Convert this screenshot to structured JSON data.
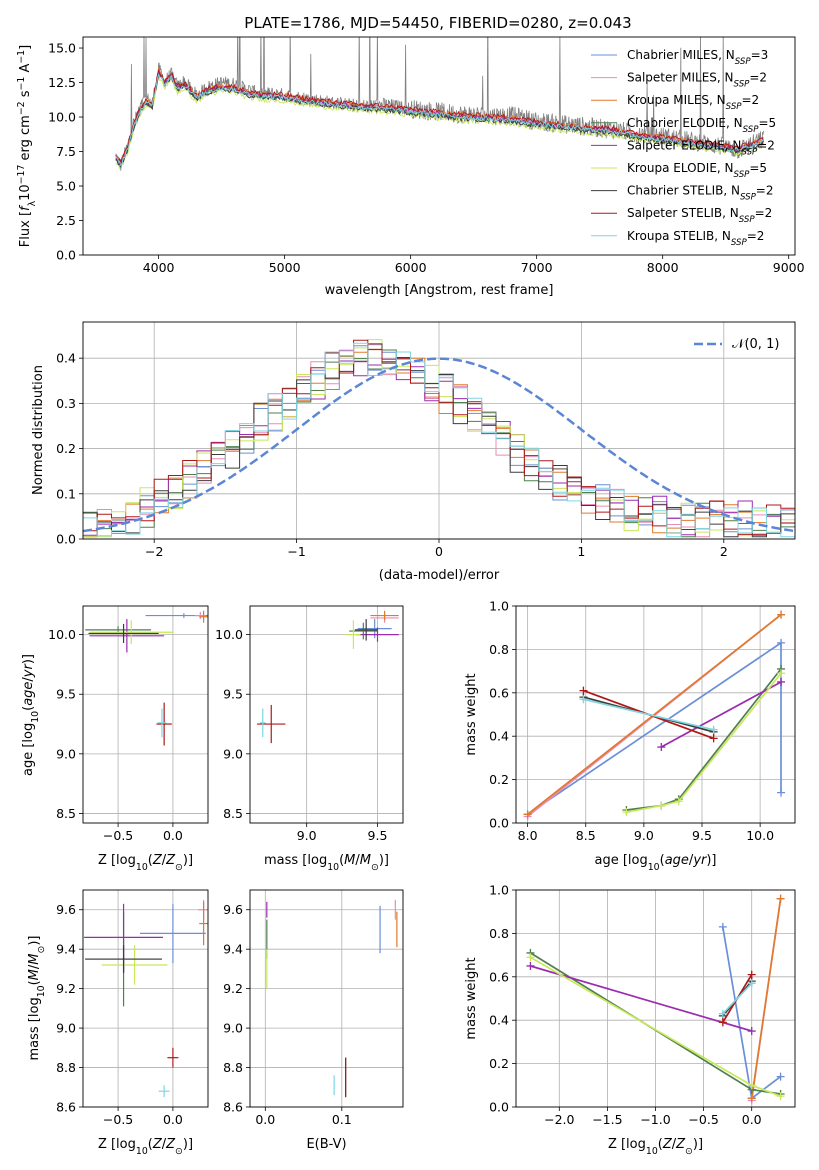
{
  "figure": {
    "title": "PLATE=1786, MJD=54450, FIBERID=0280, z=0.043"
  },
  "series": [
    {
      "name": "Chabrier MILES",
      "nssp": "3",
      "color": "#6a8fd8"
    },
    {
      "name": "Salpeter MILES",
      "nssp": "2",
      "color": "#e88bb8"
    },
    {
      "name": "Kroupa MILES",
      "nssp": "2",
      "color": "#e07a2c"
    },
    {
      "name": "Chabrier ELODIE",
      "nssp": "5",
      "color": "#4f7f4f"
    },
    {
      "name": "Salpeter ELODIE",
      "nssp": "2",
      "color": "#9b2bb0"
    },
    {
      "name": "Kroupa ELODIE",
      "nssp": "5",
      "color": "#c8e85a"
    },
    {
      "name": "Chabrier STELIB",
      "nssp": "2",
      "color": "#3c3c3c"
    },
    {
      "name": "Salpeter STELIB",
      "nssp": "2",
      "color": "#b01818"
    },
    {
      "name": "Kroupa STELIB",
      "nssp": "2",
      "color": "#7fd6e0"
    }
  ],
  "chart_data": [
    {
      "id": "spectrum",
      "type": "line",
      "title": "PLATE=1786, MJD=54450, FIBERID=0280, z=0.043",
      "xlabel": "wavelength [Angstrom, rest frame]",
      "ylabel": "Flux [f_λ 10^-17 erg cm^-2 s^-1 A^-1]",
      "xlim": [
        3400,
        9050
      ],
      "ylim": [
        0,
        15.8
      ],
      "xticks": [
        4000,
        5000,
        6000,
        7000,
        8000,
        9000
      ],
      "yticks": [
        0.0,
        2.5,
        5.0,
        7.5,
        10.0,
        12.5,
        15.0
      ],
      "data_color": "#808080",
      "data_points": [
        [
          3660,
          7.2
        ],
        [
          3700,
          6.5
        ],
        [
          3750,
          7.8
        ],
        [
          3800,
          9.5
        ],
        [
          3850,
          10.6
        ],
        [
          3900,
          11.4
        ],
        [
          3950,
          11.0
        ],
        [
          4000,
          13.5
        ],
        [
          4050,
          12.6
        ],
        [
          4100,
          13.1
        ],
        [
          4150,
          12.2
        ],
        [
          4200,
          12.6
        ],
        [
          4300,
          11.6
        ],
        [
          4400,
          12.2
        ],
        [
          4500,
          12.5
        ],
        [
          4600,
          12.4
        ],
        [
          4700,
          12.0
        ],
        [
          4800,
          11.7
        ],
        [
          4900,
          11.7
        ],
        [
          5000,
          11.6
        ],
        [
          5200,
          11.3
        ],
        [
          5400,
          11.0
        ],
        [
          5600,
          10.8
        ],
        [
          5800,
          10.9
        ],
        [
          6000,
          10.6
        ],
        [
          6200,
          10.4
        ],
        [
          6400,
          10.2
        ],
        [
          6600,
          10.1
        ],
        [
          6800,
          10.1
        ],
        [
          7000,
          9.7
        ],
        [
          7200,
          9.5
        ],
        [
          7400,
          9.3
        ],
        [
          7600,
          9.1
        ],
        [
          7800,
          8.8
        ],
        [
          8000,
          8.6
        ],
        [
          8200,
          8.3
        ],
        [
          8400,
          8.0
        ],
        [
          8600,
          7.6
        ],
        [
          8800,
          8.4
        ]
      ],
      "model_points": [
        [
          3660,
          7.0
        ],
        [
          3700,
          6.6
        ],
        [
          3750,
          7.6
        ],
        [
          3800,
          9.2
        ],
        [
          3850,
          10.4
        ],
        [
          3900,
          11.0
        ],
        [
          3950,
          10.8
        ],
        [
          4000,
          13.2
        ],
        [
          4050,
          12.4
        ],
        [
          4100,
          13.0
        ],
        [
          4150,
          12.0
        ],
        [
          4200,
          12.3
        ],
        [
          4300,
          11.4
        ],
        [
          4400,
          11.9
        ],
        [
          4500,
          12.1
        ],
        [
          4600,
          12.0
        ],
        [
          4700,
          11.7
        ],
        [
          4800,
          11.5
        ],
        [
          4900,
          11.5
        ],
        [
          5000,
          11.4
        ],
        [
          5200,
          11.1
        ],
        [
          5400,
          10.9
        ],
        [
          5600,
          10.7
        ],
        [
          5800,
          10.6
        ],
        [
          6000,
          10.4
        ],
        [
          6200,
          10.2
        ],
        [
          6400,
          10.0
        ],
        [
          6600,
          9.9
        ],
        [
          6800,
          9.8
        ],
        [
          7000,
          9.5
        ],
        [
          7200,
          9.3
        ],
        [
          7400,
          9.1
        ],
        [
          7600,
          9.0
        ],
        [
          7800,
          8.6
        ],
        [
          8000,
          8.4
        ],
        [
          8200,
          8.1
        ],
        [
          8400,
          7.9
        ],
        [
          8600,
          7.6
        ],
        [
          8800,
          8.2
        ]
      ],
      "series_model_offsets": [
        0.0,
        0.1,
        0.15,
        -0.05,
        0.05,
        -0.25,
        -0.1,
        0.2,
        0.0
      ]
    },
    {
      "id": "residuals",
      "type": "histogram",
      "xlabel": "(data-model)/error",
      "ylabel": "Normed distribution",
      "xlim": [
        -2.5,
        2.5
      ],
      "ylim": [
        0,
        0.48
      ],
      "xticks": [
        -2,
        -1,
        0,
        1,
        2
      ],
      "yticks": [
        0.0,
        0.1,
        0.2,
        0.3,
        0.4
      ],
      "reference": {
        "name": "N(0,1)",
        "mu": 0,
        "sigma": 1,
        "color": "#5b86d6"
      },
      "bin_width": 0.1,
      "envelope": [
        0.02,
        0.02,
        0.03,
        0.03,
        0.04,
        0.05,
        0.05,
        0.06,
        0.07,
        0.08,
        0.09,
        0.1,
        0.11,
        0.12,
        0.13,
        0.14,
        0.15,
        0.16,
        0.17,
        0.19,
        0.2,
        0.21,
        0.23,
        0.24,
        0.26,
        0.27,
        0.28,
        0.3,
        0.31,
        0.32,
        0.33,
        0.34,
        0.35,
        0.36,
        0.37,
        0.38,
        0.39,
        0.39,
        0.4,
        0.4,
        0.4,
        0.4,
        0.39,
        0.39,
        0.38,
        0.37,
        0.36,
        0.35,
        0.34,
        0.33,
        0.32,
        0.31,
        0.3,
        0.28,
        0.27,
        0.26,
        0.25,
        0.23,
        0.22,
        0.2,
        0.19,
        0.18,
        0.17,
        0.16,
        0.15,
        0.14,
        0.13,
        0.12,
        0.11,
        0.1,
        0.09,
        0.09,
        0.08,
        0.08,
        0.07,
        0.07,
        0.06,
        0.06,
        0.05,
        0.05,
        0.05,
        0.05,
        0.04,
        0.04,
        0.04,
        0.04,
        0.04,
        0.04,
        0.04,
        0.04,
        0.04,
        0.04,
        0.04,
        0.04,
        0.04,
        0.04,
        0.04,
        0.04,
        0.04,
        0.04
      ]
    },
    {
      "id": "age_vs_Z",
      "type": "errorbar",
      "xlabel": "Z [log10(Z/Z_sun)]",
      "ylabel": "age [log10(age/yr)]",
      "xlim": [
        -0.82,
        0.32
      ],
      "ylim": [
        8.42,
        10.24
      ],
      "xticks": [
        -0.5,
        0.0
      ],
      "yticks": [
        8.5,
        9.0,
        9.5,
        10.0
      ],
      "points": [
        {
          "s": 0,
          "x": 0.1,
          "xe": 0.35,
          "y": 10.16,
          "ye": 0.02
        },
        {
          "s": 1,
          "x": 0.25,
          "xe": 0.05,
          "y": 10.16,
          "ye": 0.03
        },
        {
          "s": 2,
          "x": 0.28,
          "xe": 0.04,
          "y": 10.15,
          "ye": 0.05
        },
        {
          "s": 3,
          "x": -0.5,
          "xe": 0.3,
          "y": 10.04,
          "ye": 0.03
        },
        {
          "s": 4,
          "x": -0.42,
          "xe": 0.34,
          "y": 9.99,
          "ye": 0.14
        },
        {
          "s": 5,
          "x": -0.38,
          "xe": 0.38,
          "y": 10.02,
          "ye": 0.1
        },
        {
          "s": 6,
          "x": -0.45,
          "xe": 0.32,
          "y": 10.01,
          "ye": 0.08
        },
        {
          "s": 7,
          "x": -0.08,
          "xe": 0.07,
          "y": 9.25,
          "ye": 0.18
        },
        {
          "s": 8,
          "x": -0.1,
          "xe": 0.04,
          "y": 9.26,
          "ye": 0.12
        }
      ]
    },
    {
      "id": "age_vs_mass",
      "type": "errorbar",
      "xlabel": "mass [log10(M/M_sun)]",
      "ylabel": "",
      "xlim": [
        8.6,
        9.68
      ],
      "ylim": [
        8.42,
        10.24
      ],
      "xticks": [
        9.0,
        9.5
      ],
      "yticks": [
        8.5,
        9.0,
        9.5,
        10.0
      ],
      "points": [
        {
          "s": 0,
          "x": 9.48,
          "xe": 0.12,
          "y": 10.05,
          "ye": 0.08
        },
        {
          "s": 1,
          "x": 9.55,
          "xe": 0.1,
          "y": 10.14,
          "ye": 0.04
        },
        {
          "s": 2,
          "x": 9.55,
          "xe": 0.1,
          "y": 10.16,
          "ye": 0.04
        },
        {
          "s": 3,
          "x": 9.4,
          "xe": 0.1,
          "y": 10.03,
          "ye": 0.07
        },
        {
          "s": 4,
          "x": 9.5,
          "xe": 0.15,
          "y": 10.0,
          "ye": 0.06
        },
        {
          "s": 5,
          "x": 9.33,
          "xe": 0.05,
          "y": 10.0,
          "ye": 0.12
        },
        {
          "s": 6,
          "x": 9.42,
          "xe": 0.08,
          "y": 10.04,
          "ye": 0.09
        },
        {
          "s": 7,
          "x": 8.75,
          "xe": 0.1,
          "y": 9.25,
          "ye": 0.16
        },
        {
          "s": 8,
          "x": 8.69,
          "xe": 0.02,
          "y": 9.26,
          "ye": 0.12
        }
      ]
    },
    {
      "id": "weight_vs_age",
      "type": "line",
      "xlabel": "age [log10(age/yr)]",
      "ylabel": "mass weight",
      "xlim": [
        7.9,
        10.3
      ],
      "ylim": [
        0.0,
        1.0
      ],
      "xticks": [
        8.0,
        8.5,
        9.0,
        9.5,
        10.0
      ],
      "yticks": [
        0.0,
        0.2,
        0.4,
        0.6,
        0.8,
        1.0
      ],
      "series": [
        {
          "s": 0,
          "x": [
            8.0,
            10.18,
            10.18
          ],
          "y": [
            0.04,
            0.83,
            0.14
          ]
        },
        {
          "s": 1,
          "x": [
            8.0,
            10.18
          ],
          "y": [
            0.03,
            0.96
          ]
        },
        {
          "s": 2,
          "x": [
            8.0,
            10.18
          ],
          "y": [
            0.04,
            0.96
          ]
        },
        {
          "s": 3,
          "x": [
            8.85,
            9.15,
            9.3,
            10.18
          ],
          "y": [
            0.06,
            0.08,
            0.11,
            0.71
          ]
        },
        {
          "s": 4,
          "x": [
            9.15,
            10.18
          ],
          "y": [
            0.35,
            0.65
          ]
        },
        {
          "s": 5,
          "x": [
            8.85,
            9.15,
            9.3,
            10.18
          ],
          "y": [
            0.05,
            0.08,
            0.1,
            0.69
          ]
        },
        {
          "s": 6,
          "x": [
            8.48,
            9.6
          ],
          "y": [
            0.58,
            0.42
          ]
        },
        {
          "s": 7,
          "x": [
            8.48,
            9.6
          ],
          "y": [
            0.61,
            0.39
          ]
        },
        {
          "s": 8,
          "x": [
            8.48,
            9.6
          ],
          "y": [
            0.57,
            0.43
          ]
        }
      ]
    },
    {
      "id": "mass_vs_Z",
      "type": "errorbar",
      "xlabel": "Z [log10(Z/Z_sun)]",
      "ylabel": "mass [log10(M/M_sun)]",
      "xlim": [
        -0.82,
        0.32
      ],
      "ylim": [
        8.6,
        9.7
      ],
      "xticks": [
        -0.5,
        0.0
      ],
      "yticks": [
        8.6,
        8.8,
        9.0,
        9.2,
        9.4,
        9.6
      ],
      "points": [
        {
          "s": 0,
          "x": 0.0,
          "xe": 0.3,
          "y": 9.48,
          "ye": 0.15
        },
        {
          "s": 1,
          "x": 0.28,
          "xe": 0.05,
          "y": 9.6,
          "ye": 0.05
        },
        {
          "s": 2,
          "x": 0.28,
          "xe": 0.04,
          "y": 9.53,
          "ye": 0.11
        },
        {
          "s": 3,
          "x": -0.45,
          "xe": 0.35,
          "y": 9.35,
          "ye": 0.24
        },
        {
          "s": 4,
          "x": -0.45,
          "xe": 0.36,
          "y": 9.46,
          "ye": 0.17
        },
        {
          "s": 5,
          "x": -0.35,
          "xe": 0.3,
          "y": 9.32,
          "ye": 0.1
        },
        {
          "s": 6,
          "x": -0.45,
          "xe": 0.35,
          "y": 9.35,
          "ye": 0.07
        },
        {
          "s": 7,
          "x": 0.0,
          "xe": 0.05,
          "y": 8.85,
          "ye": 0.05
        },
        {
          "s": 8,
          "x": -0.08,
          "xe": 0.05,
          "y": 8.68,
          "ye": 0.03
        }
      ]
    },
    {
      "id": "mass_vs_ebv",
      "type": "errorbar",
      "xlabel": "E(B-V)",
      "ylabel": "",
      "xlim": [
        -0.02,
        0.18
      ],
      "ylim": [
        8.6,
        9.7
      ],
      "xticks": [
        0.0,
        0.1
      ],
      "yticks": [
        8.6,
        8.8,
        9.0,
        9.2,
        9.4,
        9.6
      ],
      "points": [
        {
          "s": 0,
          "x": 0.15,
          "xe": 0.0,
          "y": 9.5,
          "ye": 0.12
        },
        {
          "s": 1,
          "x": 0.17,
          "xe": 0.0,
          "y": 9.6,
          "ye": 0.05
        },
        {
          "s": 2,
          "x": 0.172,
          "xe": 0.0,
          "y": 9.5,
          "ye": 0.09
        },
        {
          "s": 3,
          "x": 0.002,
          "xe": 0.0,
          "y": 9.45,
          "ye": 0.1
        },
        {
          "s": 4,
          "x": 0.002,
          "xe": 0.0,
          "y": 9.6,
          "ye": 0.04
        },
        {
          "s": 5,
          "x": 0.002,
          "xe": 0.0,
          "y": 9.3,
          "ye": 0.1
        },
        {
          "s": 6,
          "x": 0.105,
          "xe": 0.0,
          "y": 8.75,
          "ye": 0.1
        },
        {
          "s": 7,
          "x": 0.105,
          "xe": 0.0,
          "y": 8.75,
          "ye": 0.1
        },
        {
          "s": 8,
          "x": 0.09,
          "xe": 0.0,
          "y": 8.71,
          "ye": 0.05
        }
      ]
    },
    {
      "id": "weight_vs_Z",
      "type": "line",
      "xlabel": "Z [log10(Z/Z_sun)]",
      "ylabel": "mass weight",
      "xlim": [
        -2.45,
        0.45
      ],
      "ylim": [
        0.0,
        1.0
      ],
      "xticks": [
        -2.0,
        -1.5,
        -1.0,
        -0.5,
        0.0
      ],
      "yticks": [
        0.0,
        0.2,
        0.4,
        0.6,
        0.8,
        1.0
      ],
      "series": [
        {
          "s": 0,
          "x": [
            -0.3,
            0.0,
            0.3
          ],
          "y": [
            0.83,
            0.04,
            0.14
          ]
        },
        {
          "s": 1,
          "x": [
            0.0,
            0.3
          ],
          "y": [
            0.03,
            0.96
          ]
        },
        {
          "s": 2,
          "x": [
            0.0,
            0.3
          ],
          "y": [
            0.04,
            0.96
          ]
        },
        {
          "s": 3,
          "x": [
            -2.3,
            0.0,
            0.3
          ],
          "y": [
            0.71,
            0.08,
            0.06
          ]
        },
        {
          "s": 4,
          "x": [
            -2.3,
            0.0
          ],
          "y": [
            0.65,
            0.35
          ]
        },
        {
          "s": 5,
          "x": [
            -2.3,
            0.0,
            0.3
          ],
          "y": [
            0.69,
            0.1,
            0.05
          ]
        },
        {
          "s": 6,
          "x": [
            -0.3,
            0.0
          ],
          "y": [
            0.42,
            0.58
          ]
        },
        {
          "s": 7,
          "x": [
            -0.3,
            0.0
          ],
          "y": [
            0.39,
            0.61
          ]
        },
        {
          "s": 8,
          "x": [
            -0.3,
            0.0
          ],
          "y": [
            0.43,
            0.57
          ]
        }
      ]
    }
  ]
}
